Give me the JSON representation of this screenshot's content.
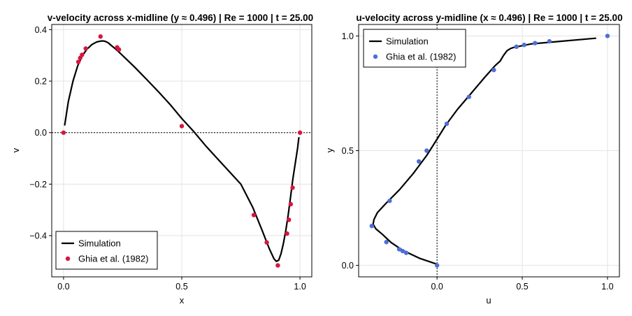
{
  "chart_data": [
    {
      "type": "line",
      "title": "v-velocity across x-midline  (y ≈ 0.496)  |  Re = 1000  |  t = 25.00",
      "xlabel": "x",
      "ylabel": "v",
      "xlim": [
        -0.05,
        1.05
      ],
      "ylim": [
        -0.56,
        0.42
      ],
      "xticks": [
        0.0,
        0.5,
        1.0
      ],
      "xtick_labels": [
        "0.0",
        "0.5",
        "1.0"
      ],
      "yticks": [
        -0.4,
        -0.2,
        0.0,
        0.2,
        0.4
      ],
      "ytick_labels": [
        "−0.4",
        "−0.2",
        "0.0",
        "0.2",
        "0.4"
      ],
      "grid": true,
      "reference_line": {
        "orientation": "horizontal",
        "value": 0.0,
        "style": "dotted"
      },
      "legend_position": "bottom-left",
      "series": [
        {
          "name": "Simulation",
          "kind": "line",
          "color": "#000000",
          "x": [
            0.005,
            0.02,
            0.04,
            0.06,
            0.08,
            0.1,
            0.12,
            0.14,
            0.16,
            0.17,
            0.18,
            0.19,
            0.2,
            0.22,
            0.24,
            0.3,
            0.35,
            0.4,
            0.45,
            0.5,
            0.55,
            0.6,
            0.65,
            0.7,
            0.75,
            0.8,
            0.84,
            0.87,
            0.89,
            0.9,
            0.91,
            0.92,
            0.93,
            0.94,
            0.95,
            0.96,
            0.97,
            0.98,
            0.99,
            0.995
          ],
          "y": [
            0.03,
            0.12,
            0.2,
            0.26,
            0.3,
            0.325,
            0.342,
            0.352,
            0.356,
            0.356,
            0.353,
            0.348,
            0.34,
            0.325,
            0.308,
            0.255,
            0.208,
            0.16,
            0.11,
            0.055,
            0.005,
            -0.05,
            -0.1,
            -0.15,
            -0.2,
            -0.29,
            -0.38,
            -0.45,
            -0.49,
            -0.5,
            -0.495,
            -0.47,
            -0.43,
            -0.38,
            -0.32,
            -0.25,
            -0.18,
            -0.12,
            -0.06,
            -0.02
          ]
        },
        {
          "name": "Ghia et al. (1982)",
          "kind": "scatter",
          "color": "#d6173e",
          "x": [
            0.0,
            0.0625,
            0.0703,
            0.0781,
            0.0938,
            0.1563,
            0.2266,
            0.2344,
            0.5,
            0.8047,
            0.8594,
            0.9063,
            0.9453,
            0.9531,
            0.9609,
            0.9688,
            1.0
          ],
          "y": [
            0.0,
            0.2746,
            0.29,
            0.3022,
            0.3264,
            0.3732,
            0.3311,
            0.3227,
            0.0253,
            -0.3199,
            -0.4264,
            -0.5155,
            -0.3919,
            -0.3386,
            -0.2779,
            -0.2138,
            0.0
          ]
        }
      ]
    },
    {
      "type": "line",
      "title": "u-velocity across y-midline  (x ≈ 0.496)  |  Re = 1000  |  t = 25.00",
      "xlabel": "u",
      "ylabel": "y",
      "xlim": [
        -0.46,
        1.07
      ],
      "ylim": [
        -0.05,
        1.05
      ],
      "xticks": [
        0.0,
        0.5,
        1.0
      ],
      "xtick_labels": [
        "0.0",
        "0.5",
        "1.0"
      ],
      "yticks": [
        0.0,
        0.5,
        1.0
      ],
      "ytick_labels": [
        "0.0",
        "0.5",
        "1.0"
      ],
      "grid": true,
      "reference_line": {
        "orientation": "vertical",
        "value": 0.0,
        "style": "dotted"
      },
      "legend_position": "top-left",
      "series": [
        {
          "name": "Simulation",
          "kind": "line",
          "color": "#000000",
          "x": [
            0.0,
            -0.1,
            -0.2,
            -0.27,
            -0.32,
            -0.36,
            -0.375,
            -0.37,
            -0.35,
            -0.3,
            -0.22,
            -0.14,
            -0.06,
            0.0,
            0.05,
            0.12,
            0.2,
            0.28,
            0.34,
            0.37,
            0.39,
            0.41,
            0.43,
            0.45,
            0.55,
            0.7,
            0.93
          ],
          "y": [
            0.005,
            0.03,
            0.065,
            0.1,
            0.135,
            0.16,
            0.18,
            0.2,
            0.23,
            0.27,
            0.33,
            0.4,
            0.48,
            0.55,
            0.61,
            0.68,
            0.75,
            0.82,
            0.87,
            0.89,
            0.915,
            0.935,
            0.945,
            0.95,
            0.965,
            0.975,
            0.99
          ]
        },
        {
          "name": "Ghia et al. (1982)",
          "kind": "scatter",
          "color": "#4e6fd6",
          "x": [
            0.0,
            -0.18109,
            -0.20196,
            -0.2222,
            -0.2973,
            -0.38289,
            -0.27805,
            -0.10648,
            -0.0608,
            0.05702,
            0.18719,
            0.33304,
            0.46604,
            0.51117,
            0.57492,
            0.65928,
            1.0
          ],
          "y": [
            0.0,
            0.0547,
            0.0625,
            0.0703,
            0.1016,
            0.1719,
            0.2813,
            0.4531,
            0.5,
            0.6172,
            0.7344,
            0.8516,
            0.9531,
            0.9609,
            0.9688,
            0.9766,
            1.0
          ]
        }
      ]
    }
  ]
}
